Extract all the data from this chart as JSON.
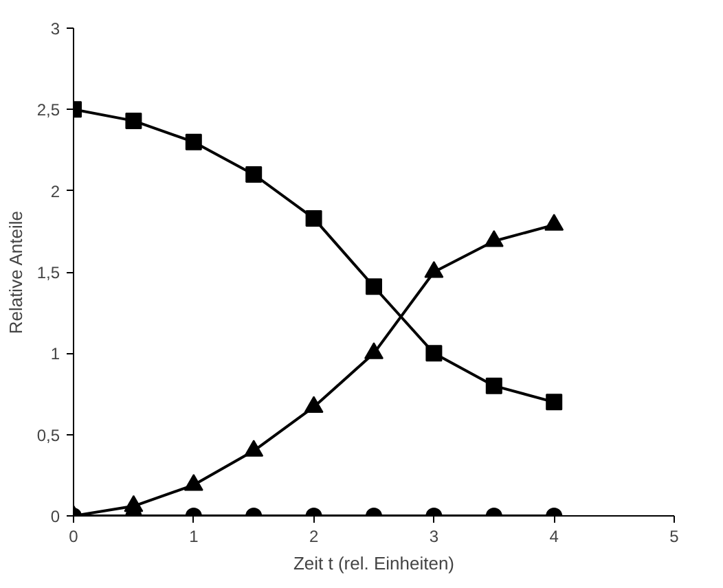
{
  "chart_data": {
    "type": "line",
    "xlabel": "Zeit t (rel. Einheiten)",
    "ylabel": "Relative Anteile",
    "x": [
      0,
      0.5,
      1,
      1.5,
      2,
      2.5,
      3,
      3.5,
      4
    ],
    "series": [
      {
        "color": "#000000",
        "marker": "square",
        "values": [
          2.5,
          2.43,
          2.3,
          2.1,
          1.83,
          1.41,
          1.0,
          0.8,
          0.7
        ]
      },
      {
        "color": "#000000",
        "marker": "circle",
        "values": [
          0,
          0,
          0,
          0,
          0,
          0,
          0,
          0,
          0
        ]
      },
      {
        "color": "#000000",
        "marker": "triangle",
        "values": [
          0,
          0.06,
          0.19,
          0.4,
          0.67,
          1.0,
          1.5,
          1.69,
          1.79
        ]
      }
    ],
    "xlim": [
      0,
      5
    ],
    "xticks": [
      0,
      1,
      2,
      3,
      4,
      5
    ],
    "ylim": [
      0,
      3
    ],
    "yticks": [
      0,
      {
        "value": 0.5,
        "label": "0,5"
      },
      1,
      {
        "value": 1.5,
        "label": "1,5"
      },
      2,
      {
        "value": 2.5,
        "label": "2,5"
      },
      3
    ],
    "grid": false,
    "line_style": "solid"
  }
}
